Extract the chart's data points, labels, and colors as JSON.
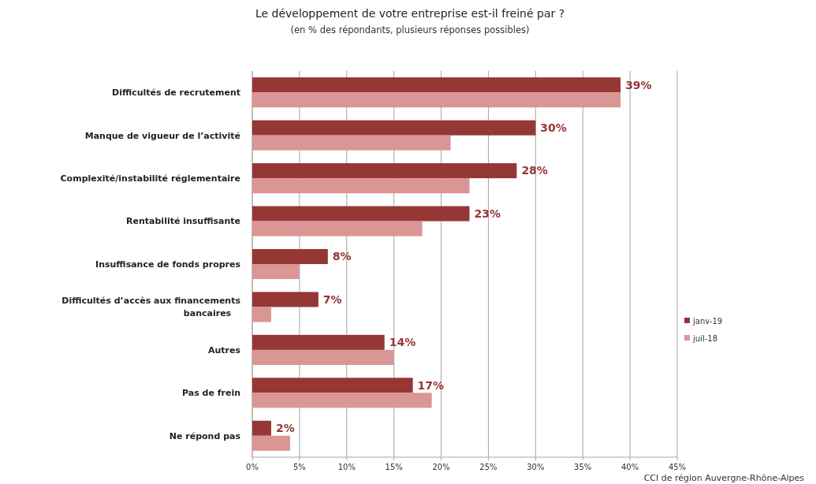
{
  "chart_data": {
    "type": "bar",
    "orientation": "horizontal",
    "title": "Le développement de votre entreprise est-il freiné par ?",
    "subtitle": "(en % des répondants, plusieurs réponses possibles)",
    "categories": [
      "Difficultés de recrutement",
      "Manque de vigueur de l’activité",
      "Complexité/instabilité réglementaire",
      "Rentabilité insuffisante",
      "Insuffisance de fonds propres",
      "Difficultés d’accès aux financements bancaires",
      "Autres",
      "Pas de frein",
      "Ne répond pas"
    ],
    "series": [
      {
        "name": "janv-19",
        "color": "#953735",
        "values": [
          39,
          30,
          28,
          23,
          8,
          7,
          14,
          17,
          2
        ],
        "value_labels": [
          "39%",
          "30%",
          "28%",
          "23%",
          "8%",
          "7%",
          "14%",
          "17%",
          "2%"
        ]
      },
      {
        "name": "juil-18",
        "color": "#d99694",
        "values": [
          39,
          21,
          23,
          18,
          5,
          2,
          15,
          19,
          4
        ]
      }
    ],
    "xlim": [
      0,
      45
    ],
    "xticks": [
      {
        "value": 0,
        "label": "0%"
      },
      {
        "value": 5,
        "label": "5%"
      },
      {
        "value": 10,
        "label": "10%"
      },
      {
        "value": 15,
        "label": "15%"
      },
      {
        "value": 20,
        "label": "20%"
      },
      {
        "value": 25,
        "label": "25%"
      },
      {
        "value": 30,
        "label": "30%"
      },
      {
        "value": 35,
        "label": "35%"
      },
      {
        "value": 40,
        "label": "40%"
      },
      {
        "value": 45,
        "label": "45%"
      }
    ],
    "grid": "x",
    "legend": "right",
    "annotations": [
      "CCI de région Auvergne-Rhône-Alpes"
    ]
  }
}
